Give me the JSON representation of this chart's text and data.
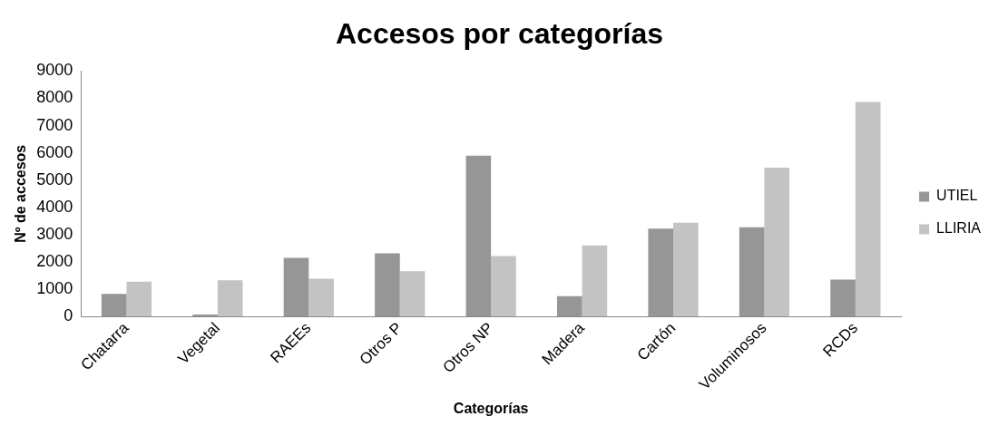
{
  "chart_data": {
    "type": "bar",
    "title": "Accesos por categorías",
    "xlabel": "Categorías",
    "ylabel": "Nº de accesos",
    "categories": [
      "Chatarra",
      "Vegetal",
      "RAEEs",
      "Otros P",
      "Otros NP",
      "Madera",
      "Cartón",
      "Voluminosos",
      "RCDs"
    ],
    "series": [
      {
        "name": "UTIEL",
        "color": "#969696",
        "values": [
          830,
          70,
          2150,
          2320,
          5900,
          750,
          3220,
          3270,
          1350
        ]
      },
      {
        "name": "LLIRIA",
        "color": "#c3c3c3",
        "values": [
          1275,
          1330,
          1390,
          1660,
          2220,
          2610,
          3440,
          5460,
          7870
        ]
      }
    ],
    "ylim": [
      0,
      9000
    ],
    "yticks": [
      0,
      1000,
      2000,
      3000,
      4000,
      5000,
      6000,
      7000,
      8000,
      9000
    ],
    "grid": false,
    "legend": "right"
  }
}
